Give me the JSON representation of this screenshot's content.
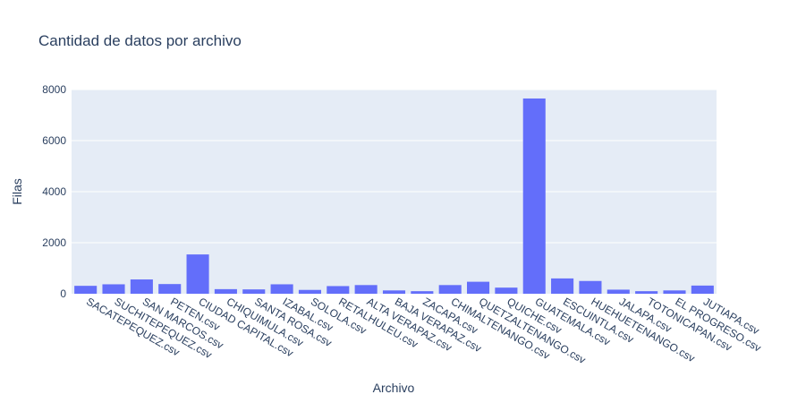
{
  "chart_data": {
    "type": "bar",
    "title": "Cantidad de datos por archivo",
    "xlabel": "Archivo",
    "ylabel": "Filas",
    "ylim": [
      0,
      8000
    ],
    "yticks": [
      0,
      2000,
      4000,
      6000,
      8000
    ],
    "ytick_labels": [
      "0",
      "2000",
      "4000",
      "6000",
      "8000"
    ],
    "grid": true,
    "colors": {
      "bar": "#636efa",
      "plot_bg": "#e5ecf6",
      "grid": "#ffffff",
      "text": "#2a3f5f"
    },
    "categories": [
      "SACATEPEQUEZ.csv",
      "SUCHITEPEQUEZ.csv",
      "SAN MARCOS.csv",
      "PETEN.csv",
      "CIUDAD CAPITAL.csv",
      "CHIQUIMULA.csv",
      "SANTA ROSA.csv",
      "IZABAL.csv",
      "SOLOLA.csv",
      "RETALHULEU.csv",
      "ALTA VERAPAZ.csv",
      "BAJA VERAPAZ.csv",
      "ZACAPA.csv",
      "CHIMALTENANGO.csv",
      "QUETZALTENANGO.csv",
      "QUICHE.csv",
      "GUATEMALA.csv",
      "ESCUINTLA.csv",
      "HUEHUETENANGO.csv",
      "JALAPA.csv",
      "TOTONICAPAN.csv",
      "EL PROGRESO.csv",
      "JUTIAPA.csv"
    ],
    "values": [
      310,
      370,
      560,
      380,
      1540,
      180,
      170,
      370,
      150,
      300,
      340,
      130,
      100,
      340,
      470,
      240,
      7650,
      600,
      500,
      160,
      100,
      130,
      320
    ]
  }
}
